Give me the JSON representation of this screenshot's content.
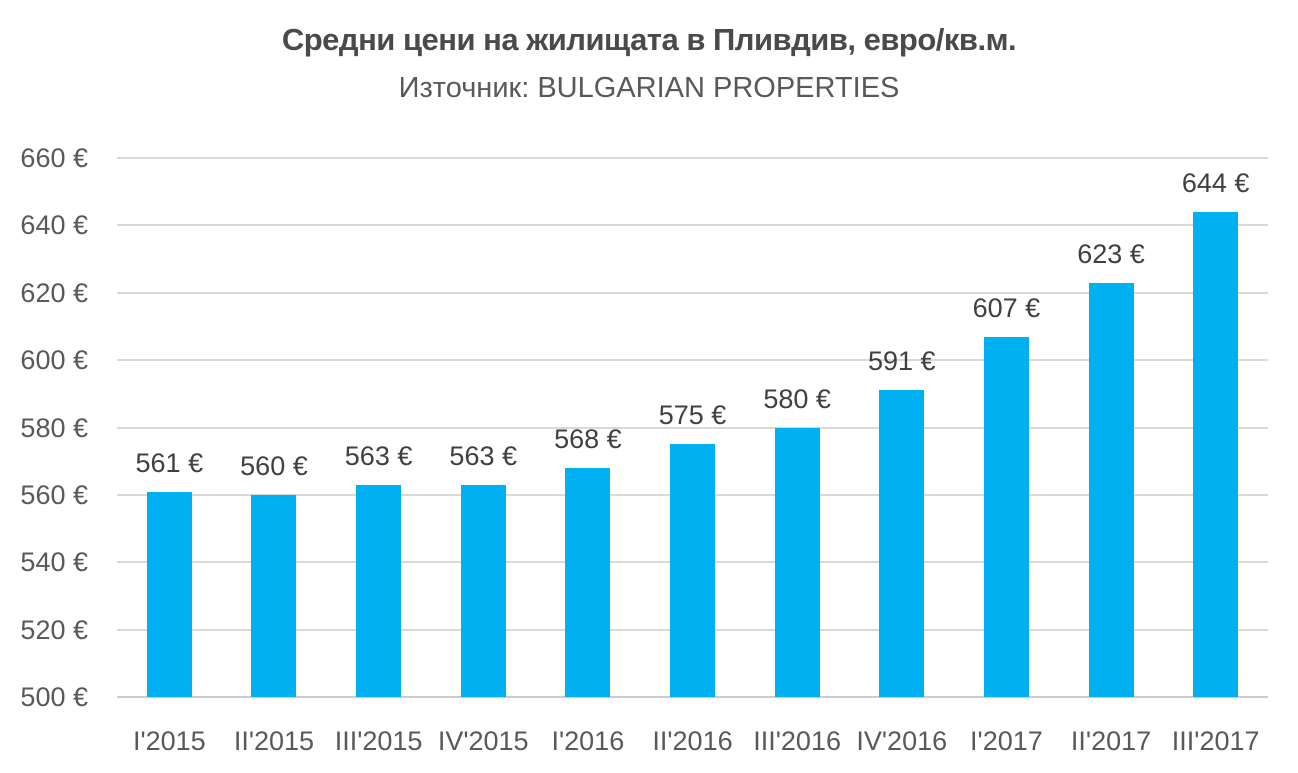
{
  "chart_data": {
    "type": "bar",
    "title": "Средни цени на жилищата в Пливдив, евро/кв.м.",
    "subtitle": "Източник: BULGARIAN PROPERTIES",
    "categories": [
      "I'2015",
      "II'2015",
      "III'2015",
      "IV'2015",
      "I'2016",
      "II'2016",
      "III'2016",
      "IV'2016",
      "I'2017",
      "II'2017",
      "III'2017"
    ],
    "values": [
      561,
      560,
      563,
      563,
      568,
      575,
      580,
      591,
      607,
      623,
      644
    ],
    "data_labels": [
      "561 €",
      "560 €",
      "563 €",
      "563 €",
      "568 €",
      "575 €",
      "580 €",
      "591 €",
      "607 €",
      "623 €",
      "644 €"
    ],
    "y_ticks": [
      500,
      520,
      540,
      560,
      580,
      600,
      620,
      640,
      660
    ],
    "y_tick_labels": [
      "500 €",
      "520 €",
      "540 €",
      "560 €",
      "580 €",
      "600 €",
      "620 €",
      "640 €",
      "660 €"
    ],
    "ylim": [
      500,
      660
    ],
    "xlabel": "",
    "ylabel": "",
    "legend_position": "none",
    "grid": "horizontal",
    "colors": {
      "bar": "#00b0f0",
      "gridline": "#d9d9d9",
      "baseline": "#cccccc",
      "axis_text": "#595959",
      "data_label": "#404040",
      "title": "#4a4a4a",
      "background": "#ffffff"
    }
  }
}
